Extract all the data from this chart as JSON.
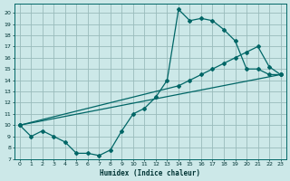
{
  "xlabel": "Humidex (Indice chaleur)",
  "bg_color": "#cce8e8",
  "grid_color": "#99bbbb",
  "line_color": "#006666",
  "xlim": [
    -0.5,
    23.5
  ],
  "ylim": [
    7,
    20.8
  ],
  "xticks": [
    0,
    1,
    2,
    3,
    4,
    5,
    6,
    7,
    8,
    9,
    10,
    11,
    12,
    13,
    14,
    15,
    16,
    17,
    18,
    19,
    20,
    21,
    22,
    23
  ],
  "yticks": [
    7,
    8,
    9,
    10,
    11,
    12,
    13,
    14,
    15,
    16,
    17,
    18,
    19,
    20
  ],
  "curve1_x": [
    0,
    1,
    2,
    3,
    4,
    5,
    6,
    7,
    8,
    9,
    10,
    11,
    12,
    13,
    14,
    15,
    16,
    17,
    18,
    19,
    20,
    21,
    22,
    23
  ],
  "curve1_y": [
    10,
    9,
    9.5,
    9,
    8.5,
    7.5,
    7.5,
    7.3,
    7.8,
    9.5,
    11,
    11.5,
    12.5,
    14,
    20.3,
    19.3,
    19.5,
    19.3,
    18.5,
    17.5,
    15,
    15,
    14.5,
    14.5
  ],
  "curve2_x": [
    0,
    23
  ],
  "curve2_y": [
    10,
    14.5
  ],
  "curve3_x": [
    0,
    14,
    15,
    16,
    17,
    18,
    19,
    20,
    21,
    22,
    23
  ],
  "curve3_y": [
    10,
    13.5,
    14,
    14.5,
    15,
    15.5,
    16,
    16.5,
    17,
    15.2,
    14.5
  ]
}
